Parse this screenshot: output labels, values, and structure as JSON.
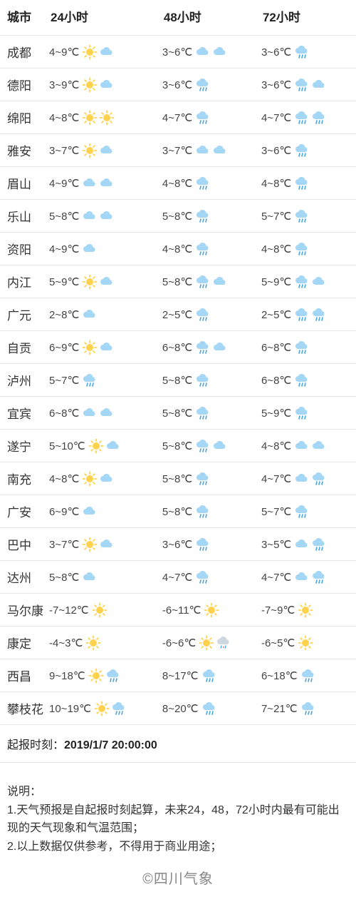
{
  "colors": {
    "sun_fill": "#ffd24d",
    "sun_stroke": "#f5b000",
    "cloud_fill": "#a4d7f5",
    "cloud_stroke": "#6fb8e0",
    "gray_cloud_fill": "#cfd8de",
    "rain_drop": "#4da6e0",
    "border": "#e5e5e5",
    "text": "#333333",
    "muted": "#888888",
    "bg": "#ffffff"
  },
  "header": {
    "city": "城市",
    "h24": "24小时",
    "h48": "48小时",
    "h72": "72小时"
  },
  "rows": [
    {
      "city": "成都",
      "t": [
        "4~9℃",
        "3~6℃",
        "3~6℃"
      ],
      "i": [
        [
          "sun",
          "cloud"
        ],
        [
          "cloud",
          "cloud"
        ],
        [
          "rain"
        ]
      ]
    },
    {
      "city": "德阳",
      "t": [
        "3~9℃",
        "3~6℃",
        "3~6℃"
      ],
      "i": [
        [
          "sun",
          "cloud"
        ],
        [
          "rain"
        ],
        [
          "rain",
          "cloud"
        ]
      ]
    },
    {
      "city": "绵阳",
      "t": [
        "4~8℃",
        "4~7℃",
        "4~7℃"
      ],
      "i": [
        [
          "sun",
          "sun"
        ],
        [
          "rain"
        ],
        [
          "rain",
          "rain"
        ]
      ]
    },
    {
      "city": "雅安",
      "t": [
        "3~7℃",
        "3~7℃",
        "3~6℃"
      ],
      "i": [
        [
          "sun",
          "cloud"
        ],
        [
          "cloud",
          "cloud"
        ],
        [
          "rain"
        ]
      ]
    },
    {
      "city": "眉山",
      "t": [
        "4~9℃",
        "4~8℃",
        "4~8℃"
      ],
      "i": [
        [
          "cloud",
          "cloud"
        ],
        [
          "rain"
        ],
        [
          "rain"
        ]
      ]
    },
    {
      "city": "乐山",
      "t": [
        "5~8℃",
        "5~8℃",
        "5~7℃"
      ],
      "i": [
        [
          "cloud",
          "cloud"
        ],
        [
          "rain"
        ],
        [
          "rain"
        ]
      ]
    },
    {
      "city": "资阳",
      "t": [
        "4~9℃",
        "4~8℃",
        "4~8℃"
      ],
      "i": [
        [
          "cloud"
        ],
        [
          "rain"
        ],
        [
          "rain"
        ]
      ]
    },
    {
      "city": "内江",
      "t": [
        "5~9℃",
        "5~8℃",
        "5~9℃"
      ],
      "i": [
        [
          "sun",
          "cloud"
        ],
        [
          "rain",
          "cloud"
        ],
        [
          "rain",
          "cloud"
        ]
      ]
    },
    {
      "city": "广元",
      "t": [
        "2~8℃",
        "2~5℃",
        "2~5℃"
      ],
      "i": [
        [
          "cloud"
        ],
        [
          "rain"
        ],
        [
          "rain",
          "rain"
        ]
      ]
    },
    {
      "city": "自贡",
      "t": [
        "6~9℃",
        "6~8℃",
        "6~8℃"
      ],
      "i": [
        [
          "sun",
          "cloud"
        ],
        [
          "rain",
          "cloud"
        ],
        [
          "rain"
        ]
      ]
    },
    {
      "city": "泸州",
      "t": [
        "5~7℃",
        "5~8℃",
        "6~8℃"
      ],
      "i": [
        [
          "rain"
        ],
        [
          "rain"
        ],
        [
          "rain"
        ]
      ]
    },
    {
      "city": "宜宾",
      "t": [
        "6~8℃",
        "5~8℃",
        "5~9℃"
      ],
      "i": [
        [
          "cloud",
          "cloud"
        ],
        [
          "rain"
        ],
        [
          "rain"
        ]
      ]
    },
    {
      "city": "遂宁",
      "t": [
        "5~10℃",
        "5~8℃",
        "4~8℃"
      ],
      "i": [
        [
          "sun",
          "cloud"
        ],
        [
          "rain",
          "cloud"
        ],
        [
          "cloud",
          "cloud"
        ]
      ]
    },
    {
      "city": "南充",
      "t": [
        "4~8℃",
        "5~8℃",
        "4~7℃"
      ],
      "i": [
        [
          "sun",
          "cloud"
        ],
        [
          "rain"
        ],
        [
          "cloud",
          "rain"
        ]
      ]
    },
    {
      "city": "广安",
      "t": [
        "6~9℃",
        "5~8℃",
        "5~7℃"
      ],
      "i": [
        [
          "cloud"
        ],
        [
          "rain"
        ],
        [
          "rain"
        ]
      ]
    },
    {
      "city": "巴中",
      "t": [
        "3~7℃",
        "3~6℃",
        "3~5℃"
      ],
      "i": [
        [
          "sun",
          "cloud"
        ],
        [
          "rain"
        ],
        [
          "cloud",
          "rain"
        ]
      ]
    },
    {
      "city": "达州",
      "t": [
        "5~8℃",
        "4~7℃",
        "4~7℃"
      ],
      "i": [
        [
          "cloud"
        ],
        [
          "rain"
        ],
        [
          "cloud",
          "rain"
        ]
      ]
    },
    {
      "city": "马尔康",
      "t": [
        "-7~12℃",
        "-6~11℃",
        "-7~9℃"
      ],
      "i": [
        [
          "sun"
        ],
        [
          "sun"
        ],
        [
          "sun"
        ]
      ]
    },
    {
      "city": "康定",
      "t": [
        "-4~3℃",
        "-6~6℃",
        "-6~5℃"
      ],
      "i": [
        [
          "sun"
        ],
        [
          "sun",
          "sleet"
        ],
        [
          "sun"
        ]
      ]
    },
    {
      "city": "西昌",
      "t": [
        "9~18℃",
        "8~17℃",
        "6~18℃"
      ],
      "i": [
        [
          "sun",
          "rain"
        ],
        [
          "rain"
        ],
        [
          "rain"
        ]
      ]
    },
    {
      "city": "攀枝花",
      "t": [
        "10~19℃",
        "8~20℃",
        "7~21℃"
      ],
      "i": [
        [
          "sun",
          "rain"
        ],
        [
          "rain"
        ],
        [
          "rain"
        ]
      ]
    }
  ],
  "timestamp": {
    "label": "起报时刻：",
    "value": "2019/1/7 20:00:00"
  },
  "desc": {
    "title": "说明：",
    "lines": [
      "1.天气预报是自起报时刻起算，未来24，48，72小时内最有可能出现的天气现象和气温范围；",
      "2.以上数据仅供参考，不得用于商业用途；"
    ]
  },
  "copyright": "©四川气象"
}
